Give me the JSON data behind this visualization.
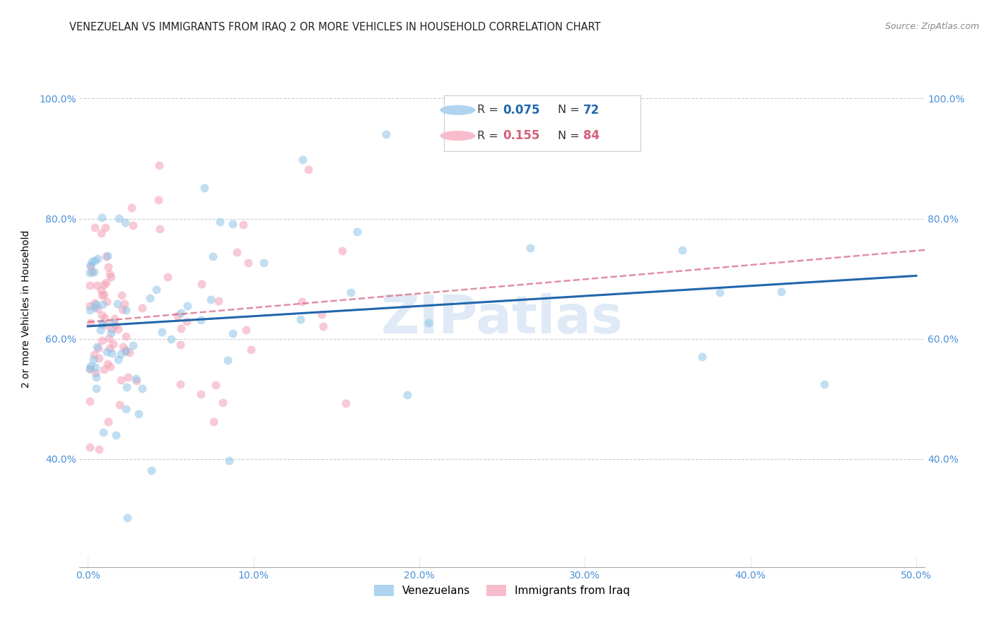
{
  "title": "VENEZUELAN VS IMMIGRANTS FROM IRAQ 2 OR MORE VEHICLES IN HOUSEHOLD CORRELATION CHART",
  "source": "Source: ZipAtlas.com",
  "ylabel": "2 or more Vehicles in Household",
  "xlabel_venezuelans": "Venezuelans",
  "xlabel_iraq": "Immigrants from Iraq",
  "xlim": [
    -0.005,
    0.505
  ],
  "ylim": [
    0.22,
    1.08
  ],
  "xticks": [
    0.0,
    0.1,
    0.2,
    0.3,
    0.4,
    0.5
  ],
  "yticks": [
    0.4,
    0.6,
    0.8,
    1.0
  ],
  "ytick_labels": [
    "40.0%",
    "60.0%",
    "80.0%",
    "100.0%"
  ],
  "xtick_labels": [
    "0.0%",
    "10.0%",
    "20.0%",
    "30.0%",
    "40.0%",
    "50.0%"
  ],
  "color_venezuelan": "#8ec4e8",
  "color_iraq": "#f4a0b5",
  "color_venezuelan_line": "#2166ac",
  "color_iraq_line": "#d4607a",
  "alpha_scatter": 0.55,
  "marker_size": 75,
  "watermark": "ZIPatlas",
  "background_color": "#ffffff",
  "grid_color": "#cccccc",
  "grid_style": "--",
  "title_fontsize": 11,
  "axis_label_fontsize": 10,
  "tick_fontsize": 10,
  "tick_color": "#4a90d9",
  "venezuelan_seed": 42,
  "iraq_seed": 7
}
